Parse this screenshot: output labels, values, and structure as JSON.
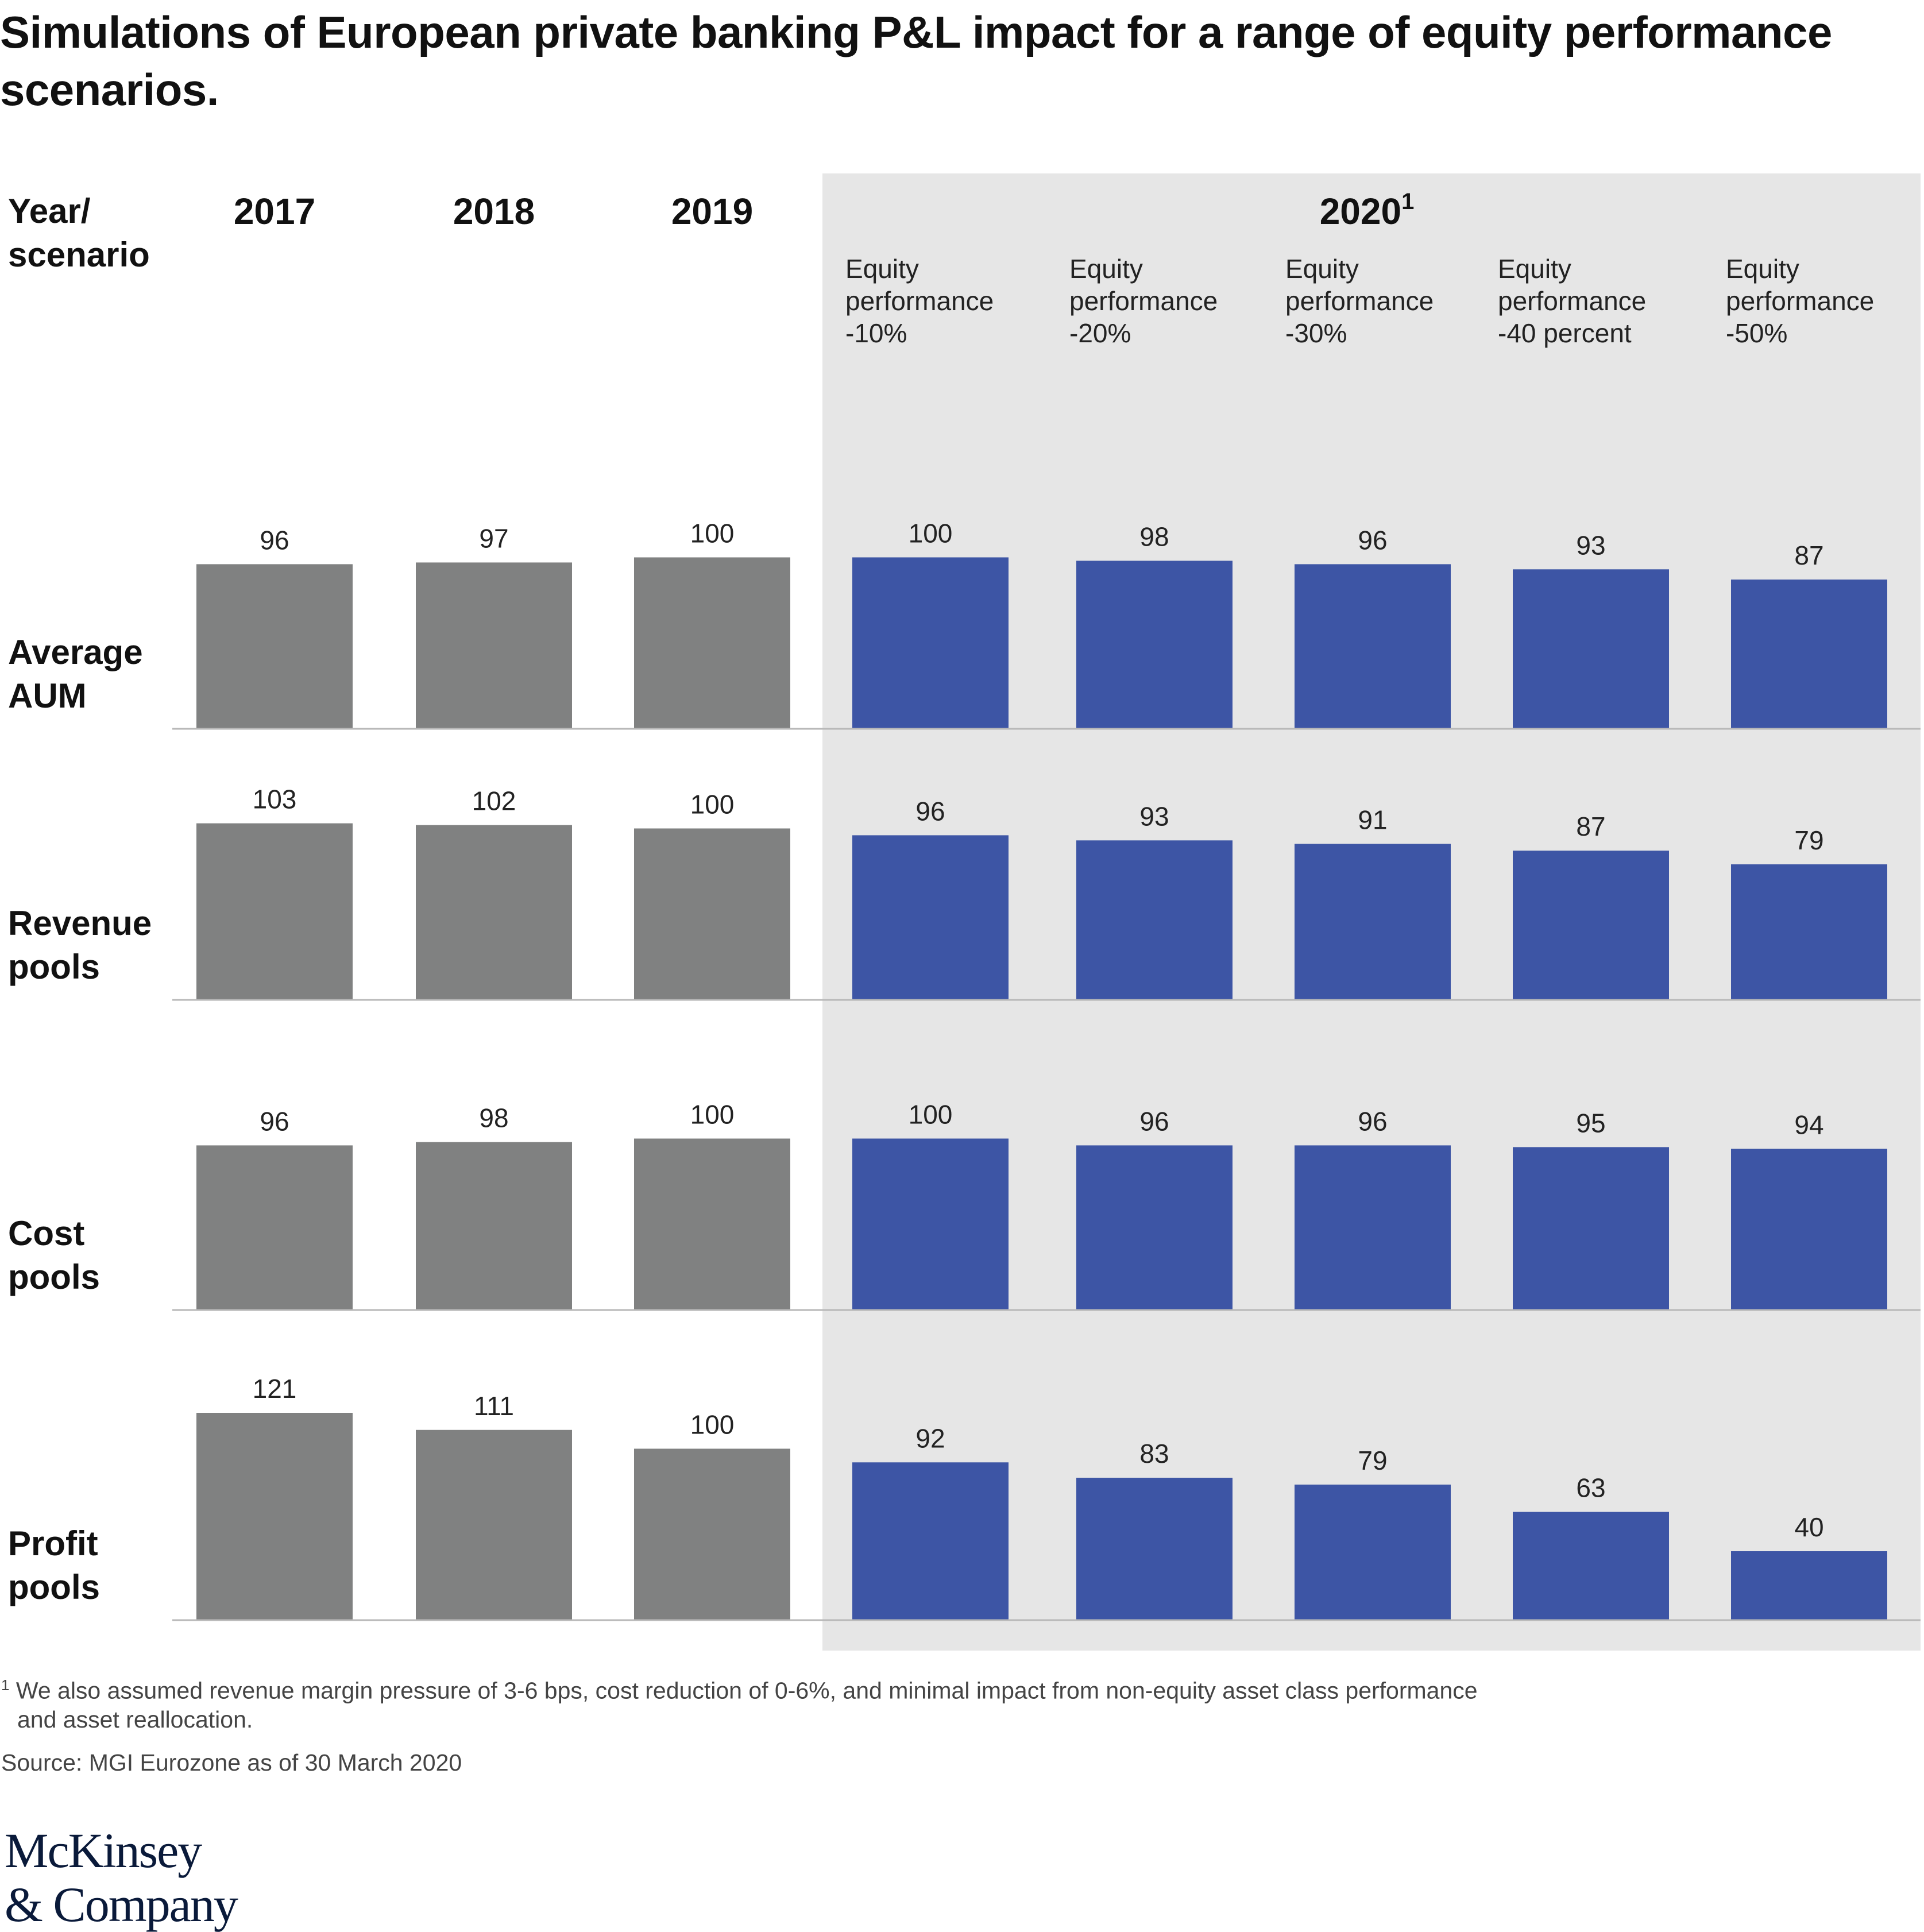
{
  "title": "Simulations of European private banking P&L impact for a range of equity performance scenarios.",
  "chart_data": {
    "type": "bar",
    "column_header_label": [
      "Year/",
      "scenario"
    ],
    "years": [
      "2017",
      "2018",
      "2019"
    ],
    "highlight_year": "2020",
    "highlight_superscript": "1",
    "scenarios": [
      [
        "Equity",
        "performance",
        "-10%"
      ],
      [
        "Equity",
        "performance",
        "-20%"
      ],
      [
        "Equity",
        "performance",
        "-30%"
      ],
      [
        "Equity",
        "performance",
        "-40 percent"
      ],
      [
        "Equity",
        "performance",
        "-50%"
      ]
    ],
    "categories": [
      "2017",
      "2018",
      "2019",
      "Equity performance -10%",
      "Equity performance -20%",
      "Equity performance -30%",
      "Equity performance -40 percent",
      "Equity performance -50%"
    ],
    "series": [
      {
        "name": "Average AUM",
        "label_lines": [
          "Average",
          "AUM"
        ],
        "values": [
          96,
          97,
          100,
          100,
          98,
          96,
          93,
          87
        ]
      },
      {
        "name": "Revenue pools",
        "label_lines": [
          "Revenue",
          "pools"
        ],
        "values": [
          103,
          102,
          100,
          96,
          93,
          91,
          87,
          79
        ]
      },
      {
        "name": "Cost pools",
        "label_lines": [
          "Cost",
          "pools"
        ],
        "values": [
          96,
          98,
          100,
          100,
          96,
          96,
          95,
          94
        ]
      },
      {
        "name": "Profit pools",
        "label_lines": [
          "Profit",
          "pools"
        ],
        "values": [
          121,
          111,
          100,
          92,
          83,
          79,
          63,
          40
        ]
      }
    ],
    "ylim": [
      0,
      121
    ],
    "colors": {
      "historical": "#808181",
      "scenario": "#3d55a5",
      "highlight_background": "#e6e6e6",
      "baseline": "#b8b8b8"
    }
  },
  "footnote": {
    "marker": "1",
    "line1": "We also assumed revenue margin pressure of 3-6 bps, cost reduction of 0-6%, and minimal impact from non-equity asset class performance",
    "line2": "and asset reallocation."
  },
  "source": "Source: MGI Eurozone as of 30 March 2020",
  "logo": {
    "line1": "McKinsey",
    "line2": "& Company"
  }
}
